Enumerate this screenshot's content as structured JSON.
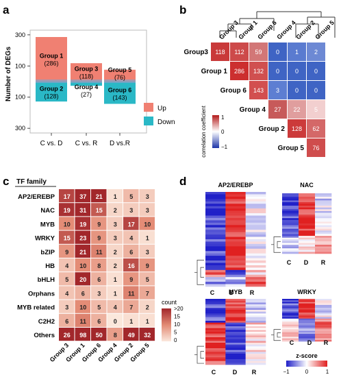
{
  "panels": {
    "a": "a",
    "b": "b",
    "c": "c",
    "d": "d"
  },
  "panel_a": {
    "ylabel": "Number of DEGs",
    "yticks_up": [
      "300",
      "100"
    ],
    "yticks_down": [
      "100",
      "300"
    ],
    "legend": [
      {
        "label": "Up",
        "color": "#f08072"
      },
      {
        "label": "Down",
        "color": "#2ab8c6"
      }
    ],
    "colors": {
      "up": "#f08072",
      "down": "#2ab8c6",
      "stack": "#8aa0c6"
    },
    "chart_data": {
      "type": "bar",
      "categories": [
        "C vs. D",
        "C vs. R",
        "D vs.R"
      ],
      "up": [
        {
          "group": "Group 1",
          "count": "(286)",
          "value": 286
        },
        {
          "group": "Group 3",
          "count": "(118)",
          "value": 118
        },
        {
          "group": "Group 5",
          "count": "(76)",
          "value": 76
        }
      ],
      "down": [
        {
          "group": "Group 2",
          "count": "(128)",
          "value": 128
        },
        {
          "group": "Group 4",
          "count": "(27)",
          "value": 27
        },
        {
          "group": "Group 6",
          "count": "(143)",
          "value": 143
        }
      ]
    }
  },
  "panel_b": {
    "col_labels": [
      "Group 3",
      "Group 1",
      "Group 6",
      "Group 4",
      "Group 2",
      "Group 5"
    ],
    "row_labels": [
      "Group3",
      "Group 1",
      "Group 6",
      "Group 4",
      "Group 2",
      "Group 5"
    ],
    "matrix": [
      [
        118,
        112,
        59,
        0,
        1,
        2
      ],
      [
        null,
        286,
        132,
        0,
        0,
        0
      ],
      [
        null,
        null,
        143,
        3,
        0,
        0
      ],
      [
        null,
        null,
        null,
        27,
        22,
        5
      ],
      [
        null,
        null,
        null,
        null,
        128,
        62
      ],
      [
        null,
        null,
        null,
        null,
        null,
        76
      ]
    ],
    "colors": [
      [
        "#c93a3a",
        "#cd4a4a",
        "#d27777",
        "#3f64c4",
        "#5a7bd0",
        "#6d89d4"
      ],
      [
        null,
        "#cc2f2f",
        "#d05050",
        "#3f64c4",
        "#3f64c4",
        "#3f64c4"
      ],
      [
        null,
        null,
        "#d24f4f",
        "#5d7ed2",
        "#3f64c4",
        "#3f64c4"
      ],
      [
        null,
        null,
        null,
        "#c75a5a",
        "#e09e9e",
        "#f2cfcf"
      ],
      [
        null,
        null,
        null,
        null,
        "#cc3a3a",
        "#d46868"
      ],
      [
        null,
        null,
        null,
        null,
        null,
        "#cf4d4d"
      ]
    ],
    "colorbar_label": "correlation coefficient",
    "colorbar_ticks": [
      "1",
      "0",
      "−1"
    ]
  },
  "panel_c": {
    "header": "TF family",
    "rows": [
      "AP2/EREBP",
      "NAC",
      "MYB",
      "WRKY",
      "bZIP",
      "HB",
      "bHLH",
      "Orphans",
      "MYB related",
      "C2H2",
      "Others"
    ],
    "cols": [
      "Group 3",
      "Group 1",
      "Group 6",
      "Group 4",
      "Group 2",
      "Group 5"
    ],
    "values": [
      [
        17,
        37,
        21,
        1,
        5,
        3
      ],
      [
        19,
        31,
        15,
        2,
        3,
        3
      ],
      [
        10,
        19,
        9,
        3,
        17,
        10
      ],
      [
        15,
        23,
        9,
        3,
        4,
        1
      ],
      [
        9,
        21,
        11,
        2,
        6,
        3
      ],
      [
        4,
        10,
        8,
        2,
        16,
        9
      ],
      [
        5,
        20,
        6,
        1,
        9,
        5
      ],
      [
        4,
        6,
        3,
        1,
        11,
        7
      ],
      [
        3,
        10,
        5,
        4,
        7,
        2
      ],
      [
        6,
        11,
        6,
        0,
        1,
        1
      ],
      [
        26,
        98,
        50,
        8,
        49,
        32
      ]
    ],
    "legend_title": "count",
    "legend_ticks": [
      ">20",
      "15",
      "10",
      "5",
      "0"
    ]
  },
  "panel_d": {
    "heatmaps": [
      {
        "title": "AP2/EREBP",
        "x": [
          "C",
          "D",
          "R"
        ]
      },
      {
        "title": "NAC",
        "x": [
          "C",
          "D",
          "R"
        ]
      },
      {
        "title": "MYB",
        "x": [
          "C",
          "D",
          "R"
        ]
      },
      {
        "title": "WRKY",
        "x": [
          "C",
          "D",
          "R"
        ]
      }
    ],
    "legend_title": "z-score",
    "legend_ticks": [
      "−1",
      "0",
      "1"
    ]
  }
}
